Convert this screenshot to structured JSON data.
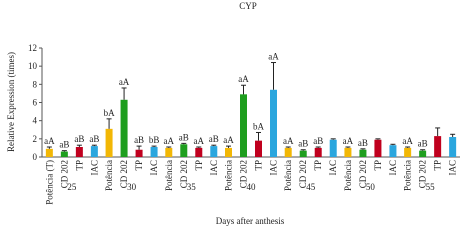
{
  "chart_data": {
    "type": "bar",
    "title": "CYP",
    "y_label": "Relative Expression (times)",
    "x_label": "Days after anthesis",
    "categories": [
      "25",
      "30",
      "35",
      "40",
      "45",
      "50",
      "55"
    ],
    "series": [
      {
        "name": "Potência (T)",
        "short_name": "Potência",
        "color": "#f2b705",
        "values": [
          0.9,
          3.1,
          1.0,
          1.0,
          1.0,
          1.0,
          1.0
        ],
        "errors": [
          0.2,
          1.1,
          0.1,
          0.2,
          0.1,
          0.1,
          0.1
        ],
        "value_labels": [
          "aA",
          "bA",
          "aA",
          "aA",
          "aA",
          "aA",
          "aA"
        ]
      },
      {
        "name": "CD 202",
        "color": "#1e9e1e",
        "values": [
          0.6,
          6.3,
          1.4,
          6.9,
          0.7,
          0.8,
          0.7
        ],
        "errors": [
          0.1,
          1.3,
          0.1,
          1.0,
          0.1,
          0.1,
          0.1
        ],
        "value_labels": [
          "aB",
          "aA",
          "aB",
          "aA",
          "aB",
          "aB",
          "aB"
        ]
      },
      {
        "name": "TP",
        "color": "#c0001e",
        "values": [
          1.1,
          0.8,
          1.0,
          1.8,
          1.0,
          1.9,
          2.3
        ],
        "errors": [
          0.2,
          0.4,
          0.1,
          0.9,
          0.1,
          0.1,
          0.9
        ],
        "value_labels": [
          "aB",
          "aB",
          "aA",
          "bA",
          "aB",
          null,
          null
        ]
      },
      {
        "name": "IAC",
        "color": "#2aa6de",
        "values": [
          1.2,
          1.1,
          1.2,
          7.4,
          1.9,
          1.3,
          2.2
        ],
        "errors": [
          0.1,
          0.1,
          0.1,
          3.0,
          0.1,
          0.1,
          0.3
        ],
        "value_labels": [
          "aB",
          "bB",
          "aB",
          "aA",
          null,
          null,
          null
        ]
      }
    ],
    "ylim": [
      0,
      12
    ],
    "yticks": [
      0,
      2,
      4,
      6,
      8,
      10,
      12
    ]
  }
}
